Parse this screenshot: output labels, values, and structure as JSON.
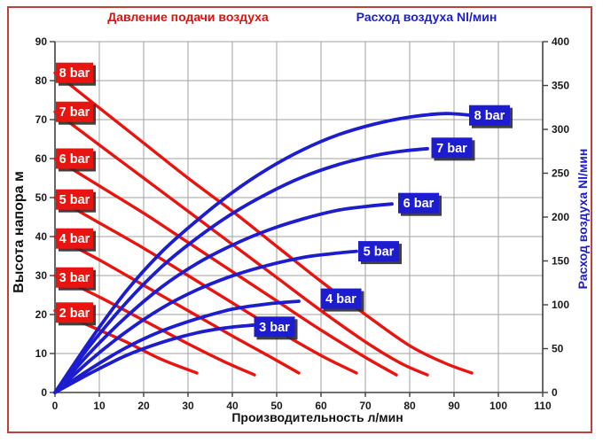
{
  "titles": {
    "pressure": "Давление подачи воздуха",
    "air": "Расход воздуха Nl/мин",
    "y_left": "Высота напора м",
    "y_right": "Расход воздуха Nl/мин",
    "x": "Производительность л/мин"
  },
  "colors": {
    "red": "#e81410",
    "blue": "#1d1dcf",
    "grid": "#a0a0a0",
    "axis": "#404040",
    "tick_text": "#1a1a1a",
    "label_text": "#ffffff",
    "label_shadow": "#2b2b2b",
    "frame_border": "#c0403c"
  },
  "chart_data": {
    "type": "line",
    "title_left": "Давление подачи воздуха",
    "title_right": "Расход воздуха Nl/мин",
    "x_axis": {
      "label": "Производительность л/мин",
      "min": 0,
      "max": 110,
      "ticks": [
        0,
        10,
        20,
        30,
        40,
        50,
        60,
        70,
        80,
        90,
        100,
        110
      ]
    },
    "y_left_axis": {
      "label": "Высота напора м",
      "min": 0,
      "max": 90,
      "ticks": [
        0,
        10,
        20,
        30,
        40,
        50,
        60,
        70,
        80,
        90
      ]
    },
    "y_right_axis": {
      "label": "Расход воздуха Nl/мин",
      "min": 0,
      "max": 400,
      "ticks": [
        0,
        50,
        100,
        150,
        200,
        250,
        300,
        350,
        400
      ]
    },
    "grid": true,
    "pressure_series": [
      {
        "name": "8 bar",
        "axis": "left",
        "points": [
          [
            0,
            82
          ],
          [
            10,
            73
          ],
          [
            20,
            64
          ],
          [
            30,
            55
          ],
          [
            40,
            46.5
          ],
          [
            50,
            37.5
          ],
          [
            60,
            28.5
          ],
          [
            70,
            20
          ],
          [
            80,
            12
          ],
          [
            88,
            7.5
          ],
          [
            94,
            5
          ]
        ],
        "label_at": [
          0,
          82
        ]
      },
      {
        "name": "7 bar",
        "axis": "left",
        "points": [
          [
            0,
            72
          ],
          [
            10,
            63.5
          ],
          [
            20,
            55
          ],
          [
            30,
            46.5
          ],
          [
            40,
            38
          ],
          [
            50,
            29.5
          ],
          [
            60,
            21
          ],
          [
            70,
            13
          ],
          [
            78,
            7.5
          ],
          [
            84,
            4.5
          ]
        ],
        "label_at": [
          0,
          72
        ]
      },
      {
        "name": "6 bar",
        "axis": "left",
        "points": [
          [
            0,
            60
          ],
          [
            10,
            53
          ],
          [
            20,
            46
          ],
          [
            30,
            38.5
          ],
          [
            40,
            31
          ],
          [
            50,
            23.5
          ],
          [
            60,
            16
          ],
          [
            70,
            9
          ],
          [
            77,
            4.5
          ]
        ],
        "label_at": [
          0,
          60
        ]
      },
      {
        "name": "5 bar",
        "axis": "left",
        "points": [
          [
            0,
            50
          ],
          [
            10,
            43.5
          ],
          [
            20,
            37
          ],
          [
            30,
            30
          ],
          [
            40,
            23
          ],
          [
            50,
            16
          ],
          [
            60,
            9.5
          ],
          [
            68,
            5
          ]
        ],
        "label_at": [
          0,
          49.5
        ]
      },
      {
        "name": "4 bar",
        "axis": "left",
        "points": [
          [
            0,
            40
          ],
          [
            10,
            34
          ],
          [
            20,
            27.5
          ],
          [
            30,
            21
          ],
          [
            40,
            14.5
          ],
          [
            48,
            9.5
          ],
          [
            55,
            5
          ]
        ],
        "label_at": [
          0,
          39.5
        ]
      },
      {
        "name": "3 bar",
        "axis": "left",
        "points": [
          [
            0,
            30
          ],
          [
            10,
            24.5
          ],
          [
            20,
            18.5
          ],
          [
            30,
            12.5
          ],
          [
            38,
            8
          ],
          [
            45,
            4.5
          ]
        ],
        "label_at": [
          0,
          29.5
        ]
      },
      {
        "name": "2 bar",
        "axis": "left",
        "points": [
          [
            0,
            21
          ],
          [
            8,
            17
          ],
          [
            16,
            13
          ],
          [
            24,
            8.5
          ],
          [
            32,
            5
          ]
        ],
        "label_at": [
          0,
          20.5
        ]
      }
    ],
    "air_series": [
      {
        "name": "8 bar",
        "axis": "right",
        "points": [
          [
            0,
            0
          ],
          [
            8,
            60
          ],
          [
            16,
            115
          ],
          [
            24,
            160
          ],
          [
            32,
            196
          ],
          [
            40,
            228
          ],
          [
            48,
            255
          ],
          [
            56,
            277
          ],
          [
            64,
            294
          ],
          [
            72,
            306
          ],
          [
            80,
            314
          ],
          [
            88,
            318
          ],
          [
            94,
            316
          ]
        ],
        "label_at": [
          98,
          316
        ]
      },
      {
        "name": "7 bar",
        "axis": "right",
        "points": [
          [
            0,
            0
          ],
          [
            8,
            54
          ],
          [
            16,
            102
          ],
          [
            24,
            143
          ],
          [
            32,
            176
          ],
          [
            40,
            204
          ],
          [
            48,
            227
          ],
          [
            56,
            246
          ],
          [
            64,
            260
          ],
          [
            72,
            270
          ],
          [
            78,
            275
          ],
          [
            84,
            278
          ]
        ],
        "label_at": [
          89.5,
          279
        ]
      },
      {
        "name": "6 bar",
        "axis": "right",
        "points": [
          [
            0,
            0
          ],
          [
            8,
            46
          ],
          [
            16,
            86
          ],
          [
            24,
            120
          ],
          [
            32,
            147
          ],
          [
            40,
            168
          ],
          [
            48,
            185
          ],
          [
            56,
            198
          ],
          [
            64,
            208
          ],
          [
            70,
            212
          ],
          [
            76,
            215
          ]
        ],
        "label_at": [
          82,
          216
        ]
      },
      {
        "name": "5 bar",
        "axis": "right",
        "points": [
          [
            0,
            0
          ],
          [
            8,
            37
          ],
          [
            16,
            69
          ],
          [
            24,
            96
          ],
          [
            32,
            117
          ],
          [
            40,
            133
          ],
          [
            48,
            145
          ],
          [
            56,
            154
          ],
          [
            62,
            158
          ],
          [
            68,
            161
          ]
        ],
        "label_at": [
          73,
          161
        ]
      },
      {
        "name": "4 bar",
        "axis": "right",
        "points": [
          [
            0,
            0
          ],
          [
            8,
            27
          ],
          [
            16,
            51
          ],
          [
            24,
            70
          ],
          [
            32,
            84
          ],
          [
            40,
            95
          ],
          [
            48,
            101
          ],
          [
            55,
            104
          ]
        ],
        "label_at": [
          64.5,
          107
        ]
      },
      {
        "name": "3 bar",
        "axis": "right",
        "points": [
          [
            0,
            0
          ],
          [
            8,
            22
          ],
          [
            16,
            42
          ],
          [
            24,
            57
          ],
          [
            32,
            68
          ],
          [
            39,
            74
          ],
          [
            45,
            77
          ]
        ],
        "label_at": [
          49.5,
          75
        ]
      }
    ]
  }
}
